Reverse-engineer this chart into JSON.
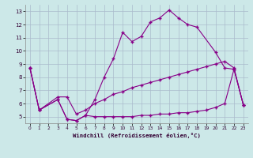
{
  "title": "",
  "xlabel": "Windchill (Refroidissement éolien,°C)",
  "background_color": "#cce8e8",
  "grid_color": "#aabbcc",
  "line_color": "#880088",
  "xlim": [
    -0.5,
    23.5
  ],
  "ylim": [
    4.5,
    13.5
  ],
  "yticks": [
    5,
    6,
    7,
    8,
    9,
    10,
    11,
    12,
    13
  ],
  "xticks": [
    0,
    1,
    2,
    3,
    4,
    5,
    6,
    7,
    8,
    9,
    10,
    11,
    12,
    13,
    14,
    15,
    16,
    17,
    18,
    19,
    20,
    21,
    22,
    23
  ],
  "series1_x": [
    0,
    1,
    3,
    4,
    5,
    6,
    7,
    8,
    9,
    10,
    11,
    12,
    13,
    14,
    15,
    16,
    17,
    18,
    20,
    21,
    22,
    23
  ],
  "series1_y": [
    8.7,
    5.5,
    6.3,
    4.8,
    4.7,
    5.1,
    6.3,
    8.0,
    9.4,
    11.4,
    10.7,
    11.1,
    12.2,
    12.5,
    13.1,
    12.5,
    12.0,
    11.8,
    9.9,
    8.7,
    8.6,
    5.9
  ],
  "series2_x": [
    0,
    1,
    3,
    4,
    5,
    6,
    7,
    8,
    9,
    10,
    11,
    12,
    13,
    14,
    15,
    16,
    17,
    18,
    19,
    20,
    21,
    22,
    23
  ],
  "series2_y": [
    8.7,
    5.5,
    6.5,
    6.5,
    5.2,
    5.5,
    6.0,
    6.3,
    6.7,
    6.9,
    7.2,
    7.4,
    7.6,
    7.8,
    8.0,
    8.2,
    8.4,
    8.6,
    8.8,
    9.0,
    9.2,
    8.7,
    5.9
  ],
  "series3_x": [
    0,
    1,
    3,
    4,
    5,
    6,
    7,
    8,
    9,
    10,
    11,
    12,
    13,
    14,
    15,
    16,
    17,
    18,
    19,
    20,
    21,
    22,
    23
  ],
  "series3_y": [
    8.7,
    5.5,
    6.3,
    4.8,
    4.7,
    5.1,
    5.0,
    5.0,
    5.0,
    5.0,
    5.0,
    5.1,
    5.1,
    5.2,
    5.2,
    5.3,
    5.3,
    5.4,
    5.5,
    5.7,
    6.0,
    8.6,
    5.9
  ]
}
